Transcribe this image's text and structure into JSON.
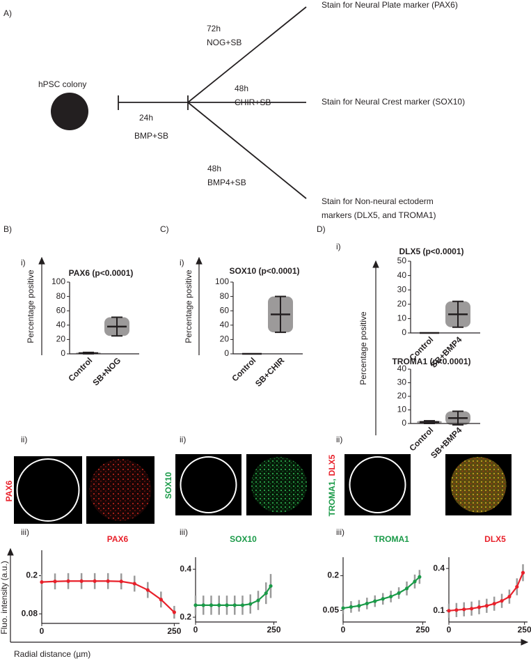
{
  "diagram": {
    "label": "A)",
    "start": "hPSC colony",
    "step_time": "24h",
    "step_media": "BMP+SB",
    "branches": [
      {
        "time": "72h",
        "media": "NOG+SB",
        "stain": [
          "Stain for Neural Plate marker (PAX6)"
        ]
      },
      {
        "time": "48h",
        "media": "CHIR+SB",
        "stain": [
          "Stain for Neural Crest marker (SOX10)"
        ]
      },
      {
        "time": "48h",
        "media": "BMP4+SB",
        "stain": [
          "Stain for Non-neural ectoderm",
          "markers (DLX5, and TROMA1)"
        ]
      }
    ]
  },
  "panels": [
    {
      "letter": "B)",
      "i": "i)",
      "ii": "ii)",
      "iii": "iii)",
      "y_label": "Percentage positive",
      "image_label": [
        {
          "text": "PAX6",
          "color": "#e8202a"
        }
      ]
    },
    {
      "letter": "C)",
      "i": "i)",
      "ii": "ii)",
      "iii": "iii)",
      "y_label": "Percentage positive",
      "image_label": [
        {
          "text": "SOX10",
          "color": "#1a9a48"
        }
      ]
    },
    {
      "letter": "D)",
      "i": "i)",
      "ii": "ii)",
      "iii": "iii)",
      "y_label": "Percentage positive",
      "image_label": [
        {
          "text": "TROMA1,",
          "color": "#1a9a48"
        },
        {
          "text": "DLX5",
          "color": "#e8202a"
        }
      ]
    }
  ],
  "footer": {
    "y_label": "Fluo. intensity (a.u.)",
    "x_label": "Radial distance (µm)"
  },
  "chart_data": [
    {
      "type": "strip",
      "title": "PAX6 (p<0.0001)",
      "categories": [
        "Control",
        "SB+NOG"
      ],
      "values": [
        1,
        38
      ],
      "errors": [
        1,
        13
      ],
      "color": "#231f20",
      "ylim": [
        0,
        100
      ],
      "yticks": [
        0,
        20,
        40,
        60,
        80,
        100
      ]
    },
    {
      "type": "strip",
      "title": "SOX10 (p<0.0001)",
      "categories": [
        "Control",
        "SB+CHIR"
      ],
      "values": [
        0,
        55
      ],
      "errors": [
        0,
        25
      ],
      "color": "#231f20",
      "ylim": [
        0,
        100
      ],
      "yticks": [
        0,
        20,
        40,
        60,
        80,
        100
      ]
    },
    {
      "type": "strip",
      "title": "DLX5 (p<0.0001)",
      "categories": [
        "Control",
        "SB+BMP4"
      ],
      "values": [
        0,
        13
      ],
      "errors": [
        0,
        9
      ],
      "color": "#231f20",
      "ylim": [
        0,
        50
      ],
      "yticks": [
        0,
        10,
        20,
        30,
        40,
        50
      ]
    },
    {
      "type": "strip",
      "title": "TROMA1 (p<0.0001)",
      "categories": [
        "Control",
        "SB+BMP4"
      ],
      "values": [
        1,
        4
      ],
      "errors": [
        1,
        5
      ],
      "color": "#231f20",
      "ylim": [
        0,
        40
      ],
      "yticks": [
        0,
        10,
        20,
        30,
        40
      ]
    },
    {
      "type": "line",
      "title": "PAX6",
      "color": "#e8202a",
      "x": [
        0,
        25,
        50,
        75,
        100,
        125,
        150,
        175,
        200,
        225,
        250
      ],
      "values": [
        0.18,
        0.182,
        0.183,
        0.183,
        0.183,
        0.183,
        0.182,
        0.175,
        0.155,
        0.125,
        0.085
      ],
      "errors": [
        0.025,
        0.025,
        0.025,
        0.025,
        0.025,
        0.025,
        0.025,
        0.025,
        0.025,
        0.025,
        0.02
      ],
      "xlim": [
        0,
        260
      ],
      "xticks": [
        0,
        250
      ],
      "ylim": [
        0.05,
        0.28
      ],
      "yticks": [
        0.08,
        0.2
      ]
    },
    {
      "type": "line",
      "title": "SOX10",
      "color": "#1a9a48",
      "x": [
        0,
        25,
        50,
        75,
        100,
        125,
        150,
        175,
        200,
        225,
        240
      ],
      "values": [
        0.25,
        0.25,
        0.25,
        0.25,
        0.25,
        0.25,
        0.25,
        0.255,
        0.27,
        0.3,
        0.33
      ],
      "errors": [
        0.04,
        0.04,
        0.04,
        0.04,
        0.04,
        0.04,
        0.04,
        0.04,
        0.04,
        0.045,
        0.05
      ],
      "xlim": [
        0,
        260
      ],
      "xticks": [
        0,
        250
      ],
      "ylim": [
        0.18,
        0.45
      ],
      "yticks": [
        0.2,
        0.4
      ]
    },
    {
      "type": "line",
      "title": "TROMA1",
      "color": "#1a9a48",
      "x": [
        0,
        25,
        50,
        75,
        100,
        125,
        150,
        175,
        200,
        225,
        240
      ],
      "values": [
        0.06,
        0.065,
        0.07,
        0.08,
        0.09,
        0.1,
        0.11,
        0.125,
        0.145,
        0.175,
        0.195
      ],
      "errors": [
        0.025,
        0.025,
        0.025,
        0.025,
        0.025,
        0.025,
        0.025,
        0.025,
        0.03,
        0.03,
        0.03
      ],
      "xlim": [
        0,
        260
      ],
      "xticks": [
        0,
        250
      ],
      "ylim": [
        0,
        0.28
      ],
      "yticks": [
        0.05,
        0.2
      ]
    },
    {
      "type": "line",
      "title": "DLX5",
      "color": "#e8202a",
      "x": [
        0,
        25,
        50,
        75,
        100,
        125,
        150,
        175,
        200,
        225,
        245
      ],
      "values": [
        0.1,
        0.105,
        0.11,
        0.115,
        0.125,
        0.135,
        0.15,
        0.17,
        0.2,
        0.27,
        0.37
      ],
      "errors": [
        0.05,
        0.05,
        0.05,
        0.05,
        0.05,
        0.05,
        0.05,
        0.05,
        0.05,
        0.06,
        0.06
      ],
      "xlim": [
        0,
        260
      ],
      "xticks": [
        0,
        250
      ],
      "ylim": [
        0.02,
        0.48
      ],
      "yticks": [
        0.1,
        0.4
      ]
    }
  ]
}
